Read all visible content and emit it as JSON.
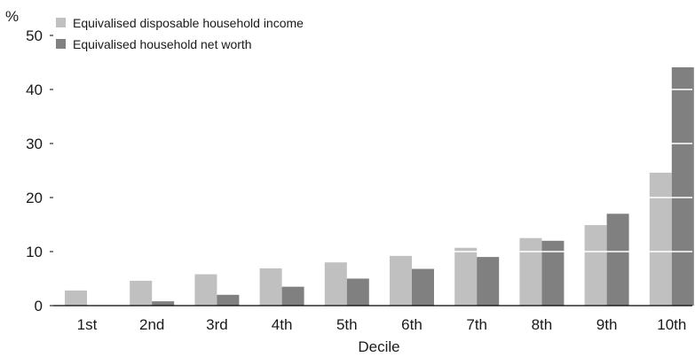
{
  "chart_data": {
    "type": "bar",
    "title": "",
    "xlabel": "Decile",
    "ylabel": "%",
    "ylim": [
      0,
      50
    ],
    "yticks": [
      0,
      10,
      20,
      30,
      40,
      50
    ],
    "gridlines": "white lines over bars at each y tick",
    "legend_position": "top-left",
    "categories": [
      "1st",
      "2nd",
      "3rd",
      "4th",
      "5th",
      "6th",
      "7th",
      "8th",
      "9th",
      "10th"
    ],
    "series": [
      {
        "name": "Equivalised disposable household income",
        "color": "#c0c0c0",
        "values": [
          2.8,
          4.6,
          5.8,
          6.9,
          8.0,
          9.2,
          10.7,
          12.5,
          14.9,
          24.6
        ]
      },
      {
        "name": "Equivalised household net worth",
        "color": "#808080",
        "values": [
          0.0,
          0.8,
          2.0,
          3.5,
          5.0,
          6.8,
          9.0,
          12.0,
          17.0,
          44.1
        ]
      }
    ]
  }
}
